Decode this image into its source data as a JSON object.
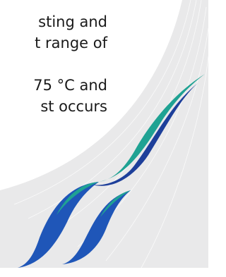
{
  "text_lines": [
    "sting and",
    "t range of",
    "75 °C and",
    "st occurs"
  ]
}
